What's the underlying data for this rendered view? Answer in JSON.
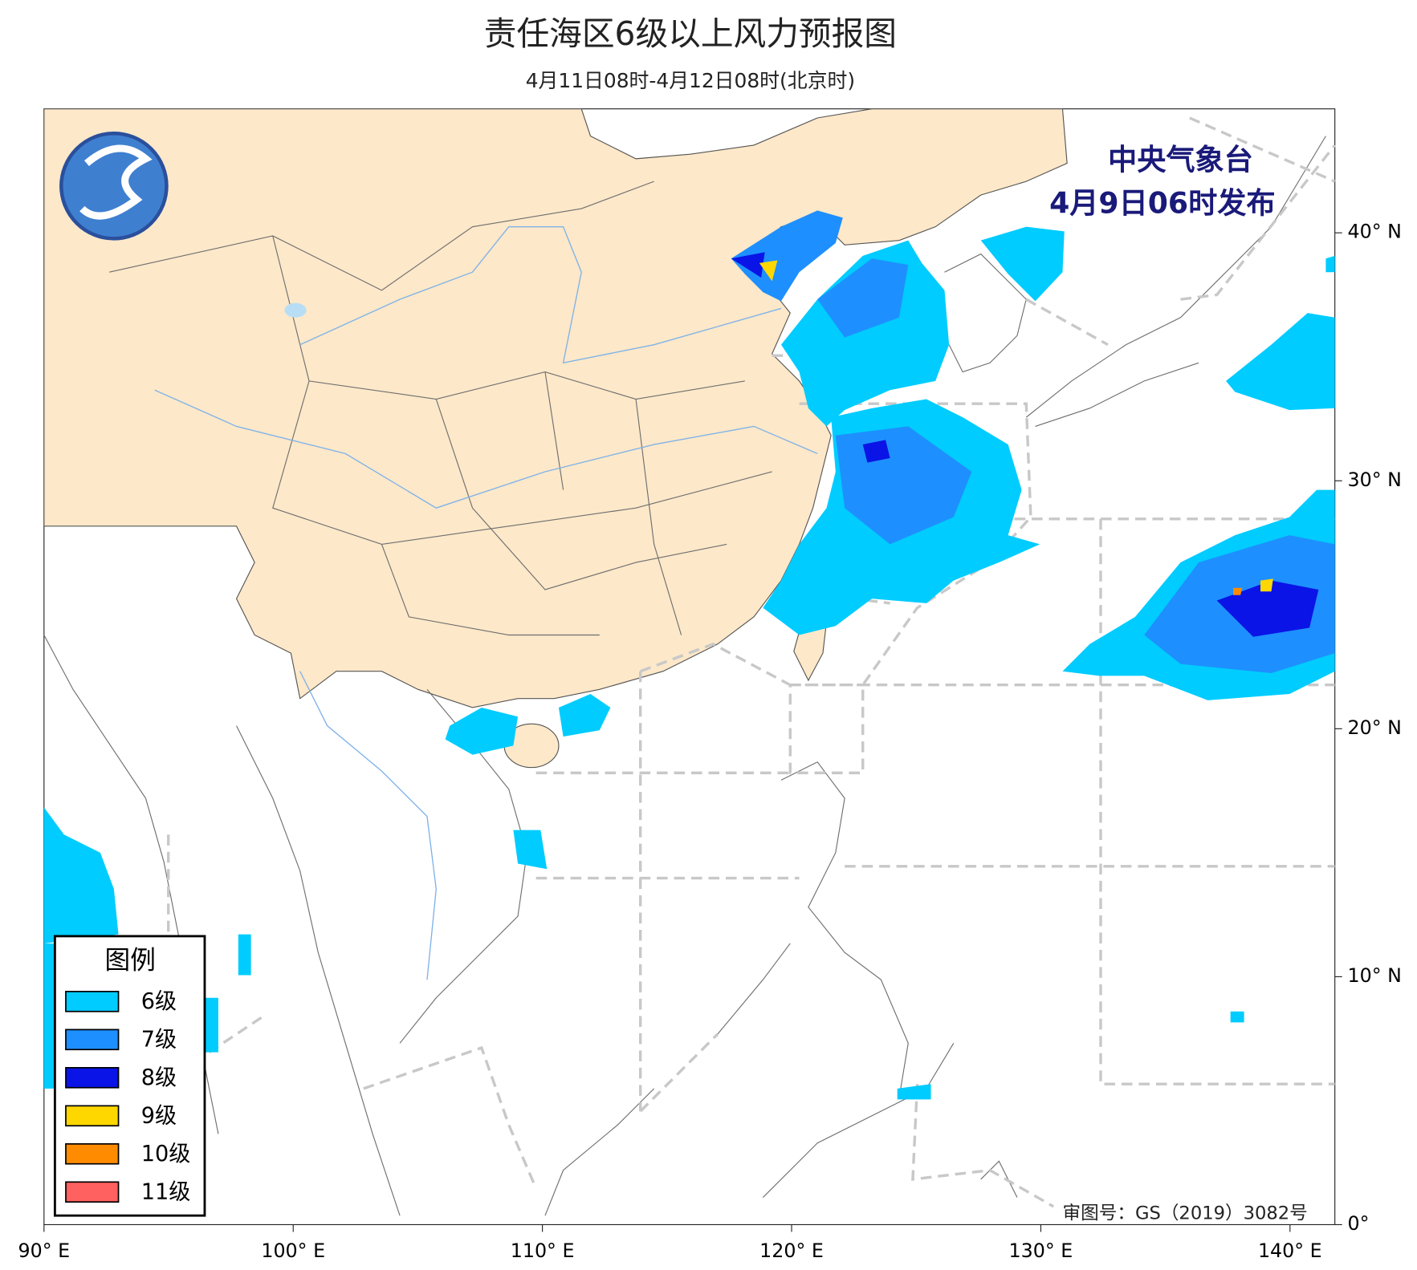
{
  "map": {
    "title": "责任海区6级以上风力预报图",
    "subtitle": "4月11日08时-4月12日08时(北京时)",
    "publisher": "中央气象台",
    "issued": "4月9日06时发布",
    "review_number": "审图号：GS（2019）3082号",
    "legend": {
      "title": "图例",
      "items": [
        {
          "label": "6级",
          "color": "#00ccff"
        },
        {
          "label": "7级",
          "color": "#1e8fff"
        },
        {
          "label": "8级",
          "color": "#0a14e6"
        },
        {
          "label": "9级",
          "color": "#ffd700"
        },
        {
          "label": "10级",
          "color": "#ff8c00"
        },
        {
          "label": "11级",
          "color": "#ff6060"
        }
      ]
    },
    "lonlim": [
      90,
      141.8
    ],
    "latlim": [
      0,
      45
    ],
    "lonticks": [
      {
        "value": 90,
        "label": "90° E"
      },
      {
        "value": 100,
        "label": "100° E"
      },
      {
        "value": 110,
        "label": "110° E"
      },
      {
        "value": 120,
        "label": "120° E"
      },
      {
        "value": 130,
        "label": "130° E"
      },
      {
        "value": 140,
        "label": "140° E"
      }
    ],
    "latticks": [
      {
        "value": 0,
        "label": "0°"
      },
      {
        "value": 10,
        "label": "10° N"
      },
      {
        "value": 20,
        "label": "20° N"
      },
      {
        "value": 30,
        "label": "30° N"
      },
      {
        "value": 40,
        "label": "40° N"
      }
    ]
  }
}
